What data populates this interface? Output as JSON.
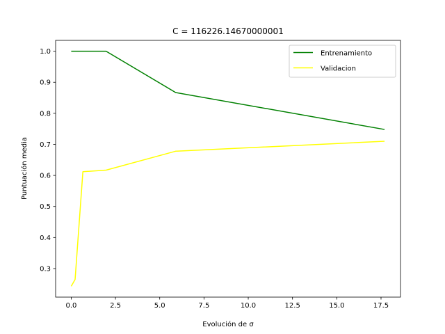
{
  "chart_data": {
    "type": "line",
    "title": "C = 116226.14670000001",
    "xlabel": "Evolución de σ",
    "ylabel": "Puntuación media",
    "xlim": [
      -0.88,
      18.6
    ],
    "ylim": [
      0.208,
      1.035
    ],
    "xticks": [
      0.0,
      2.5,
      5.0,
      7.5,
      10.0,
      12.5,
      15.0,
      17.5
    ],
    "xtick_labels": [
      "0.0",
      "2.5",
      "5.0",
      "7.5",
      "10.0",
      "12.5",
      "15.0",
      "17.5"
    ],
    "yticks": [
      0.3,
      0.4,
      0.5,
      0.6,
      0.7,
      0.8,
      0.9,
      1.0
    ],
    "ytick_labels": [
      "0.3",
      "0.4",
      "0.5",
      "0.6",
      "0.7",
      "0.8",
      "0.9",
      "1.0"
    ],
    "grid": false,
    "legend_position": "top-right",
    "series": [
      {
        "name": "Entrenamiento",
        "color": "#008000",
        "x": [
          0.0,
          0.22,
          0.66,
          1.97,
          5.9,
          17.7
        ],
        "y": [
          1.0,
          1.0,
          1.0,
          1.0,
          0.867,
          0.748
        ]
      },
      {
        "name": "Validacion",
        "color": "#ffff00",
        "x": [
          0.0,
          0.22,
          0.66,
          1.97,
          5.9,
          17.7
        ],
        "y": [
          0.243,
          0.265,
          0.612,
          0.617,
          0.678,
          0.71
        ]
      }
    ]
  }
}
